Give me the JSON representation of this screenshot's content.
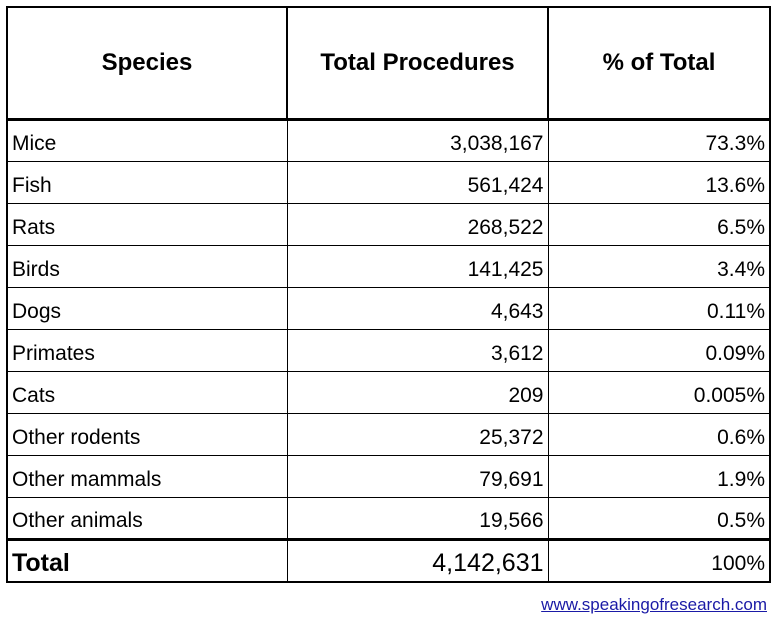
{
  "chart_data": {
    "type": "table",
    "columns": [
      "Species",
      "Total Procedures",
      "% of Total"
    ],
    "rows": [
      {
        "species": "Mice",
        "procedures": "3,038,167",
        "percent": "73.3%"
      },
      {
        "species": "Fish",
        "procedures": "561,424",
        "percent": "13.6%"
      },
      {
        "species": "Rats",
        "procedures": "268,522",
        "percent": "6.5%"
      },
      {
        "species": "Birds",
        "procedures": "141,425",
        "percent": "3.4%"
      },
      {
        "species": "Dogs",
        "procedures": "4,643",
        "percent": "0.11%"
      },
      {
        "species": "Primates",
        "procedures": "3,612",
        "percent": "0.09%"
      },
      {
        "species": "Cats",
        "procedures": "209",
        "percent": "0.005%"
      },
      {
        "species": "Other rodents",
        "procedures": "25,372",
        "percent": "0.6%"
      },
      {
        "species": "Other mammals",
        "procedures": "79,691",
        "percent": "1.9%"
      },
      {
        "species": "Other animals",
        "procedures": "19,566",
        "percent": "0.5%"
      }
    ],
    "total": {
      "species": "Total",
      "procedures": "4,142,631",
      "percent": "100%"
    }
  },
  "footer": {
    "link_text": "www.speakingofresearch.com",
    "link_color": "#1a1aa6"
  }
}
